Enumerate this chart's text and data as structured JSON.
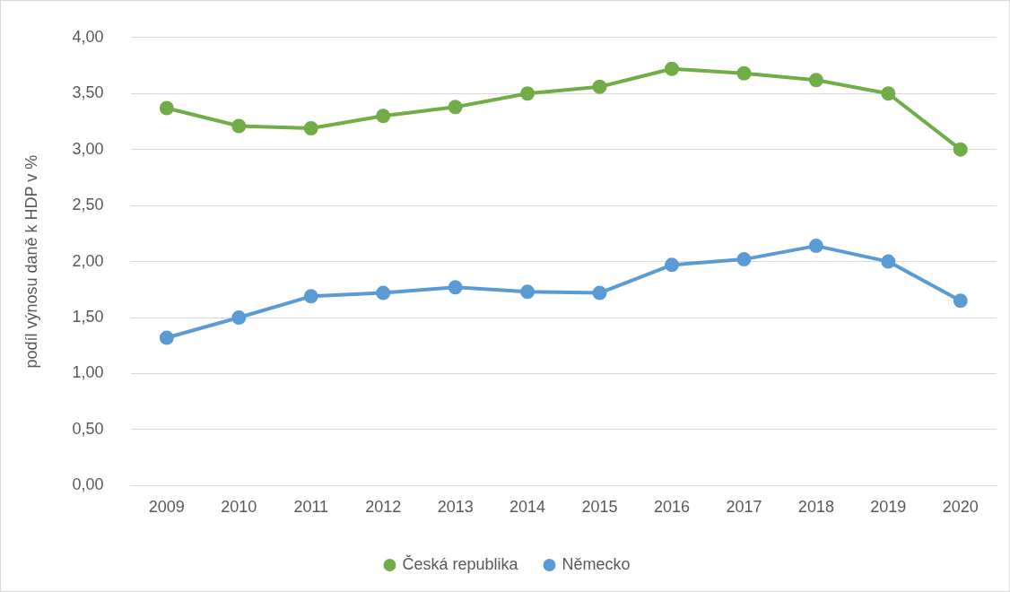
{
  "chart_data": {
    "type": "line",
    "ylabel": "podíl výnosu daně k HDP v %",
    "categories": [
      "2009",
      "2010",
      "2011",
      "2012",
      "2013",
      "2014",
      "2015",
      "2016",
      "2017",
      "2018",
      "2019",
      "2020"
    ],
    "series": [
      {
        "name": "Česká republika",
        "color": "#70ad47",
        "values": [
          3.37,
          3.21,
          3.19,
          3.3,
          3.38,
          3.5,
          3.56,
          3.72,
          3.68,
          3.62,
          3.5,
          3.0
        ]
      },
      {
        "name": "Německo",
        "color": "#5b9bd5",
        "values": [
          1.32,
          1.5,
          1.69,
          1.72,
          1.77,
          1.73,
          1.72,
          1.97,
          2.02,
          2.14,
          2.0,
          1.65
        ]
      }
    ],
    "ylim": [
      0,
      4
    ],
    "yticks": [
      {
        "value": 0,
        "label": "0,00"
      },
      {
        "value": 0.5,
        "label": "0,50"
      },
      {
        "value": 1,
        "label": "1,00"
      },
      {
        "value": 1.5,
        "label": "1,50"
      },
      {
        "value": 2,
        "label": "2,00"
      },
      {
        "value": 2.5,
        "label": "2,50"
      },
      {
        "value": 3,
        "label": "3,00"
      },
      {
        "value": 3.5,
        "label": "3,50"
      },
      {
        "value": 4,
        "label": "4,00"
      }
    ],
    "grid": "y",
    "legend": "bottom",
    "marker": "circle",
    "line_style": "solid"
  }
}
